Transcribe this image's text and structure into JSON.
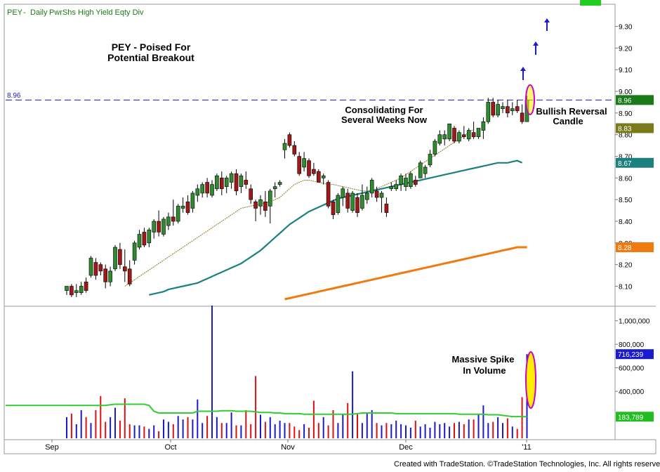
{
  "header": {
    "symbol": "PEY",
    "separator1": "-",
    "interval": "Daily",
    "description": "PwrShs High Yield Eqty Div"
  },
  "footer": {
    "credit": "Created with TradeStation. ©TradeStation Technologies, Inc. All rights reserved."
  },
  "annotations": {
    "title_line1": "PEY - Poised For",
    "title_line2": "Potential Breakout",
    "consolidating_line1": "Consolidating For",
    "consolidating_line2": "Several Weeks Now",
    "reversal_line1": "Bullish Reversal",
    "reversal_line2": "Candle",
    "volume_line1": "Massive Spike",
    "volume_line2": "In Volume",
    "resistance_label": "8.96"
  },
  "colors": {
    "up_candle": "#2e8b2e",
    "down_candle": "#a01818",
    "sma20": "#8a7a1a",
    "sma50": "#1a8080",
    "sma200": "#f07a10",
    "vol_up": "#1a1ad0",
    "vol_down": "#e01010",
    "vol_avg": "#33cc33",
    "resistance": "#1a1ab0",
    "highlight_fill": "#ffee00",
    "highlight_stroke": "#cc00cc",
    "arrow": "#1a1ad0"
  },
  "chart_data": [
    {
      "type": "candlestick",
      "title": "PEY - Daily PwrShs High Yield Eqty Div",
      "x_labels": [
        "Sep",
        "Oct",
        "Nov",
        "Dec",
        "'11"
      ],
      "y_ticks": [
        8.1,
        8.2,
        8.3,
        8.4,
        8.5,
        8.6,
        8.7,
        8.8,
        8.9,
        9.0,
        9.1,
        9.2,
        9.3
      ],
      "y_tick_labels": [
        "8.10",
        "8.20",
        "8.30",
        "8.40",
        "8.50",
        "8.60",
        "8.70",
        "8.80",
        "8.90",
        "9.00",
        "9.10",
        "9.20",
        "9.30"
      ],
      "ylim": [
        8.04,
        9.37
      ],
      "resistance_level": 8.96,
      "price_axis_flags": [
        {
          "label": "8.96",
          "value": 8.96,
          "color": "#1a7a1a"
        },
        {
          "label": "8.83",
          "value": 8.83,
          "color": "#7a7a1a"
        },
        {
          "label": "8.67",
          "value": 8.67,
          "color": "#1a8080"
        },
        {
          "label": "8.28",
          "value": 8.28,
          "color": "#f07a10"
        }
      ],
      "candles": [
        {
          "o": 8.08,
          "h": 8.1,
          "l": 8.06,
          "c": 8.1
        },
        {
          "o": 8.1,
          "h": 8.11,
          "l": 8.05,
          "c": 8.06
        },
        {
          "o": 8.07,
          "h": 8.11,
          "l": 8.05,
          "c": 8.08
        },
        {
          "o": 8.07,
          "h": 8.12,
          "l": 8.06,
          "c": 8.1
        },
        {
          "o": 8.12,
          "h": 8.14,
          "l": 8.07,
          "c": 8.08
        },
        {
          "o": 8.15,
          "h": 8.24,
          "l": 8.14,
          "c": 8.23
        },
        {
          "o": 8.21,
          "h": 8.23,
          "l": 8.13,
          "c": 8.15
        },
        {
          "o": 8.2,
          "h": 8.21,
          "l": 8.15,
          "c": 8.17
        },
        {
          "o": 8.18,
          "h": 8.2,
          "l": 8.09,
          "c": 8.12
        },
        {
          "o": 8.12,
          "h": 8.19,
          "l": 8.1,
          "c": 8.17
        },
        {
          "o": 8.18,
          "h": 8.29,
          "l": 8.17,
          "c": 8.28
        },
        {
          "o": 8.27,
          "h": 8.3,
          "l": 8.18,
          "c": 8.2
        },
        {
          "o": 8.19,
          "h": 8.27,
          "l": 8.12,
          "c": 8.17
        },
        {
          "o": 8.18,
          "h": 8.22,
          "l": 8.1,
          "c": 8.11
        },
        {
          "o": 8.22,
          "h": 8.31,
          "l": 8.2,
          "c": 8.3
        },
        {
          "o": 8.28,
          "h": 8.36,
          "l": 8.27,
          "c": 8.34
        },
        {
          "o": 8.35,
          "h": 8.37,
          "l": 8.28,
          "c": 8.29
        },
        {
          "o": 8.3,
          "h": 8.37,
          "l": 8.28,
          "c": 8.36
        },
        {
          "o": 8.35,
          "h": 8.41,
          "l": 8.32,
          "c": 8.4
        },
        {
          "o": 8.4,
          "h": 8.45,
          "l": 8.33,
          "c": 8.35
        },
        {
          "o": 8.34,
          "h": 8.42,
          "l": 8.33,
          "c": 8.41
        },
        {
          "o": 8.38,
          "h": 8.44,
          "l": 8.36,
          "c": 8.42
        },
        {
          "o": 8.42,
          "h": 8.5,
          "l": 8.38,
          "c": 8.4
        },
        {
          "o": 8.4,
          "h": 8.48,
          "l": 8.39,
          "c": 8.47
        },
        {
          "o": 8.46,
          "h": 8.51,
          "l": 8.44,
          "c": 8.47
        },
        {
          "o": 8.49,
          "h": 8.52,
          "l": 8.43,
          "c": 8.44
        },
        {
          "o": 8.46,
          "h": 8.54,
          "l": 8.44,
          "c": 8.53
        },
        {
          "o": 8.52,
          "h": 8.57,
          "l": 8.49,
          "c": 8.55
        },
        {
          "o": 8.53,
          "h": 8.58,
          "l": 8.51,
          "c": 8.57
        },
        {
          "o": 8.58,
          "h": 8.6,
          "l": 8.51,
          "c": 8.53
        },
        {
          "o": 8.52,
          "h": 8.59,
          "l": 8.51,
          "c": 8.57
        },
        {
          "o": 8.55,
          "h": 8.62,
          "l": 8.54,
          "c": 8.61
        },
        {
          "o": 8.6,
          "h": 8.63,
          "l": 8.52,
          "c": 8.55
        },
        {
          "o": 8.56,
          "h": 8.61,
          "l": 8.53,
          "c": 8.6
        },
        {
          "o": 8.58,
          "h": 8.63,
          "l": 8.55,
          "c": 8.62
        },
        {
          "o": 8.62,
          "h": 8.64,
          "l": 8.52,
          "c": 8.54
        },
        {
          "o": 8.56,
          "h": 8.62,
          "l": 8.53,
          "c": 8.61
        },
        {
          "o": 8.59,
          "h": 8.63,
          "l": 8.55,
          "c": 8.57
        },
        {
          "o": 8.55,
          "h": 8.57,
          "l": 8.48,
          "c": 8.5
        },
        {
          "o": 8.49,
          "h": 8.5,
          "l": 8.4,
          "c": 8.46
        },
        {
          "o": 8.47,
          "h": 8.52,
          "l": 8.43,
          "c": 8.5
        },
        {
          "o": 8.49,
          "h": 8.54,
          "l": 8.42,
          "c": 8.45
        },
        {
          "o": 8.47,
          "h": 8.55,
          "l": 8.39,
          "c": 8.54
        },
        {
          "o": 8.55,
          "h": 8.58,
          "l": 8.51,
          "c": 8.56
        },
        {
          "o": 8.57,
          "h": 8.59,
          "l": 8.56,
          "c": 8.58
        },
        {
          "o": 8.73,
          "h": 8.78,
          "l": 8.69,
          "c": 8.76
        },
        {
          "o": 8.8,
          "h": 8.81,
          "l": 8.74,
          "c": 8.75
        },
        {
          "o": 8.75,
          "h": 8.77,
          "l": 8.7,
          "c": 8.71
        },
        {
          "o": 8.7,
          "h": 8.72,
          "l": 8.61,
          "c": 8.62
        },
        {
          "o": 8.65,
          "h": 8.72,
          "l": 8.63,
          "c": 8.69
        },
        {
          "o": 8.68,
          "h": 8.69,
          "l": 8.6,
          "c": 8.61
        },
        {
          "o": 8.64,
          "h": 8.67,
          "l": 8.61,
          "c": 8.62
        },
        {
          "o": 8.63,
          "h": 8.64,
          "l": 8.58,
          "c": 8.58
        },
        {
          "o": 8.6,
          "h": 8.62,
          "l": 8.57,
          "c": 8.61
        },
        {
          "o": 8.58,
          "h": 8.59,
          "l": 8.46,
          "c": 8.47
        },
        {
          "o": 8.49,
          "h": 8.5,
          "l": 8.41,
          "c": 8.43
        },
        {
          "o": 8.44,
          "h": 8.53,
          "l": 8.43,
          "c": 8.52
        },
        {
          "o": 8.51,
          "h": 8.56,
          "l": 8.47,
          "c": 8.55
        },
        {
          "o": 8.53,
          "h": 8.55,
          "l": 8.44,
          "c": 8.46
        },
        {
          "o": 8.45,
          "h": 8.54,
          "l": 8.44,
          "c": 8.53
        },
        {
          "o": 8.51,
          "h": 8.53,
          "l": 8.42,
          "c": 8.44
        },
        {
          "o": 8.46,
          "h": 8.57,
          "l": 8.45,
          "c": 8.52
        },
        {
          "o": 8.5,
          "h": 8.56,
          "l": 8.48,
          "c": 8.53
        },
        {
          "o": 8.53,
          "h": 8.6,
          "l": 8.51,
          "c": 8.59
        },
        {
          "o": 8.54,
          "h": 8.56,
          "l": 8.49,
          "c": 8.51
        },
        {
          "o": 8.51,
          "h": 8.54,
          "l": 8.44,
          "c": 8.53
        },
        {
          "o": 8.48,
          "h": 8.51,
          "l": 8.42,
          "c": 8.44
        },
        {
          "o": 8.55,
          "h": 8.58,
          "l": 8.54,
          "c": 8.56
        },
        {
          "o": 8.55,
          "h": 8.59,
          "l": 8.54,
          "c": 8.57
        },
        {
          "o": 8.57,
          "h": 8.62,
          "l": 8.54,
          "c": 8.61
        },
        {
          "o": 8.56,
          "h": 8.62,
          "l": 8.54,
          "c": 8.6
        },
        {
          "o": 8.56,
          "h": 8.63,
          "l": 8.55,
          "c": 8.62
        },
        {
          "o": 8.59,
          "h": 8.61,
          "l": 8.56,
          "c": 8.57
        },
        {
          "o": 8.6,
          "h": 8.68,
          "l": 8.6,
          "c": 8.67
        },
        {
          "o": 8.62,
          "h": 8.66,
          "l": 8.6,
          "c": 8.65
        },
        {
          "o": 8.66,
          "h": 8.73,
          "l": 8.65,
          "c": 8.71
        },
        {
          "o": 8.71,
          "h": 8.78,
          "l": 8.7,
          "c": 8.77
        },
        {
          "o": 8.76,
          "h": 8.82,
          "l": 8.75,
          "c": 8.8
        },
        {
          "o": 8.78,
          "h": 8.82,
          "l": 8.75,
          "c": 8.8
        },
        {
          "o": 8.78,
          "h": 8.85,
          "l": 8.77,
          "c": 8.85
        },
        {
          "o": 8.83,
          "h": 8.84,
          "l": 8.76,
          "c": 8.77
        },
        {
          "o": 8.77,
          "h": 8.82,
          "l": 8.76,
          "c": 8.81
        },
        {
          "o": 8.8,
          "h": 8.84,
          "l": 8.78,
          "c": 8.79
        },
        {
          "o": 8.78,
          "h": 8.83,
          "l": 8.77,
          "c": 8.82
        },
        {
          "o": 8.81,
          "h": 8.86,
          "l": 8.78,
          "c": 8.79
        },
        {
          "o": 8.79,
          "h": 8.83,
          "l": 8.78,
          "c": 8.83
        },
        {
          "o": 8.82,
          "h": 8.88,
          "l": 8.78,
          "c": 8.86
        },
        {
          "o": 8.86,
          "h": 8.97,
          "l": 8.85,
          "c": 8.95
        },
        {
          "o": 8.95,
          "h": 8.97,
          "l": 8.88,
          "c": 8.89
        },
        {
          "o": 8.89,
          "h": 8.96,
          "l": 8.88,
          "c": 8.94
        },
        {
          "o": 8.92,
          "h": 8.95,
          "l": 8.9,
          "c": 8.93
        },
        {
          "o": 8.93,
          "h": 8.96,
          "l": 8.88,
          "c": 8.9
        },
        {
          "o": 8.91,
          "h": 8.95,
          "l": 8.89,
          "c": 8.92
        },
        {
          "o": 8.93,
          "h": 8.96,
          "l": 8.9,
          "c": 8.91
        },
        {
          "o": 8.9,
          "h": 8.94,
          "l": 8.85,
          "c": 8.86
        },
        {
          "o": 8.86,
          "h": 8.98,
          "l": 8.86,
          "c": 8.96
        }
      ],
      "sma20": {
        "start_index": 12,
        "values": [
          8.1,
          8.115,
          8.13,
          8.145,
          8.16,
          8.175,
          8.19,
          8.205,
          8.22,
          8.235,
          8.25,
          8.265,
          8.28,
          8.295,
          8.31,
          8.325,
          8.34,
          8.355,
          8.37,
          8.385,
          8.4,
          8.415,
          8.43,
          8.445,
          8.46,
          8.465,
          8.47,
          8.475,
          8.48,
          8.485,
          8.49,
          8.5,
          8.51,
          8.53,
          8.55,
          8.57,
          8.58,
          8.59,
          8.59,
          8.585,
          8.58,
          8.575,
          8.57,
          8.57,
          8.565,
          8.56,
          8.555,
          8.55,
          8.545,
          8.54,
          8.54,
          8.545,
          8.55,
          8.56,
          8.57,
          8.58,
          8.59,
          8.6,
          8.615,
          8.63,
          8.645,
          8.66,
          8.675,
          8.69,
          8.705,
          8.72,
          8.735,
          8.75,
          8.765,
          8.78,
          8.795,
          8.81,
          8.825
        ]
      },
      "sma50": {
        "start_index": 17,
        "values": [
          8.06,
          8.065,
          8.07,
          8.075,
          8.085,
          8.09,
          8.095,
          8.1,
          8.105,
          8.11,
          8.115,
          8.125,
          8.135,
          8.145,
          8.155,
          8.165,
          8.175,
          8.185,
          8.195,
          8.205,
          8.22,
          8.235,
          8.25,
          8.265,
          8.285,
          8.305,
          8.325,
          8.345,
          8.365,
          8.385,
          8.4,
          8.415,
          8.43,
          8.445,
          8.455,
          8.465,
          8.475,
          8.485,
          8.495,
          8.505,
          8.51,
          8.515,
          8.52,
          8.525,
          8.53,
          8.535,
          8.54,
          8.545,
          8.55,
          8.555,
          8.56,
          8.565,
          8.57,
          8.575,
          8.58,
          8.585,
          8.59,
          8.595,
          8.6,
          8.605,
          8.61,
          8.615,
          8.62,
          8.625,
          8.63,
          8.635,
          8.64,
          8.645,
          8.65,
          8.655,
          8.66,
          8.665,
          8.67,
          8.67,
          8.67,
          8.675,
          8.68,
          8.67
        ]
      },
      "sma200": {
        "start_index": 45,
        "values": [
          8.04,
          8.045,
          8.05,
          8.055,
          8.06,
          8.065,
          8.07,
          8.075,
          8.08,
          8.085,
          8.09,
          8.095,
          8.1,
          8.105,
          8.11,
          8.115,
          8.12,
          8.125,
          8.13,
          8.135,
          8.14,
          8.145,
          8.15,
          8.155,
          8.16,
          8.165,
          8.17,
          8.175,
          8.18,
          8.185,
          8.19,
          8.195,
          8.2,
          8.205,
          8.21,
          8.215,
          8.22,
          8.225,
          8.23,
          8.235,
          8.24,
          8.245,
          8.25,
          8.255,
          8.26,
          8.265,
          8.27,
          8.275,
          8.28,
          8.28,
          8.28
        ]
      }
    },
    {
      "type": "bar",
      "title": "Volume",
      "y_ticks": [
        400000,
        600000,
        800000,
        1000000
      ],
      "y_tick_labels": [
        "400,000",
        "600,000",
        "800,000",
        "1,000,000"
      ],
      "ylim": [
        0,
        1100000
      ],
      "last_volume_label": "716,239",
      "avg_volume_label": "183,789",
      "volume": [
        180000,
        210000,
        120000,
        240000,
        180000,
        130000,
        240000,
        360000,
        140000,
        180000,
        260000,
        150000,
        340000,
        120000,
        110000,
        110000,
        100000,
        80000,
        110000,
        60000,
        160000,
        140000,
        120000,
        190000,
        160000,
        180000,
        160000,
        330000,
        130000,
        190000,
        1130000,
        180000,
        130000,
        130000,
        220000,
        110000,
        110000,
        240000,
        120000,
        530000,
        200000,
        140000,
        180000,
        120000,
        150000,
        130000,
        130000,
        100000,
        70000,
        120000,
        90000,
        320000,
        130000,
        180000,
        110000,
        240000,
        130000,
        200000,
        300000,
        570000,
        210000,
        130000,
        220000,
        240000,
        130000,
        110000,
        130000,
        120000,
        150000,
        120000,
        110000,
        90000,
        150000,
        100000,
        120000,
        90000,
        140000,
        120000,
        130000,
        100000,
        130000,
        140000,
        120000,
        160000,
        160000,
        200000,
        280000,
        130000,
        140000,
        180000,
        130000,
        170000,
        100000,
        80000,
        350000,
        716239
      ],
      "avg_volume": [
        280000,
        280000,
        280000,
        280000,
        280000,
        280000,
        280000,
        280000,
        280000,
        285000,
        290000,
        290000,
        290000,
        290000,
        290000,
        290000,
        290000,
        280000,
        230000,
        215000,
        215000,
        215000,
        215000,
        215000,
        215000,
        215000,
        215000,
        230000,
        230000,
        230000,
        230000,
        230000,
        235000,
        235000,
        235000,
        230000,
        230000,
        230000,
        230000,
        225000,
        220000,
        220000,
        220000,
        215000,
        215000,
        210000,
        210000,
        210000,
        210000,
        205000,
        205000,
        205000,
        205000,
        205000,
        205000,
        205000,
        205000,
        205000,
        205000,
        205000,
        210000,
        215000,
        215000,
        215000,
        215000,
        215000,
        215000,
        215000,
        210000,
        210000,
        210000,
        210000,
        210000,
        210000,
        210000,
        210000,
        210000,
        210000,
        210000,
        210000,
        210000,
        205000,
        205000,
        205000,
        205000,
        205000,
        205000,
        200000,
        200000,
        200000,
        195000,
        190000,
        185000,
        185000,
        185000,
        183789
      ]
    }
  ]
}
